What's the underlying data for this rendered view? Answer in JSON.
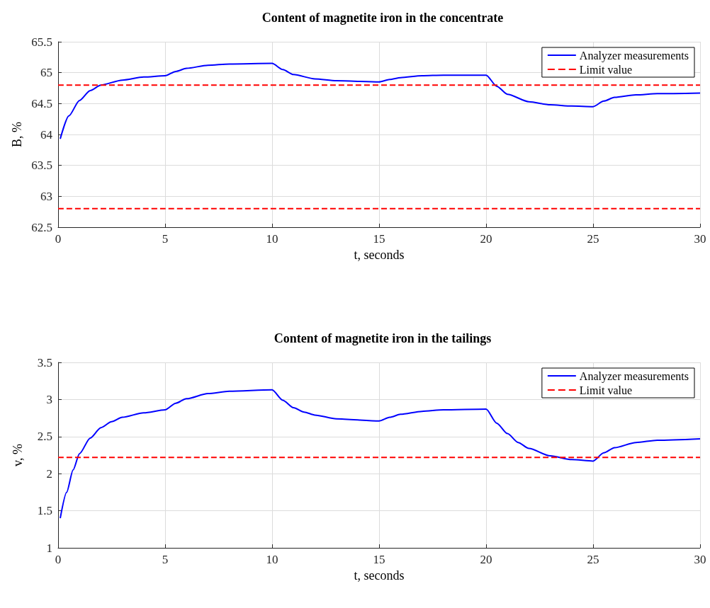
{
  "chart_data": [
    {
      "type": "line",
      "title": "Content of magnetite iron in the concentrate",
      "xlabel": "t, seconds",
      "ylabel": "B, %",
      "xlim": [
        0,
        30
      ],
      "xticks": [
        0,
        5,
        10,
        15,
        20,
        25,
        30
      ],
      "ylim": [
        62.5,
        65.5
      ],
      "yticks": [
        62.5,
        63,
        63.5,
        64,
        64.5,
        65,
        65.5
      ],
      "grid": true,
      "legend": "top right",
      "series": [
        {
          "name": "Analyzer measurements",
          "color": "#0000ff",
          "line_style": "solid",
          "x": [
            0.1,
            0.5,
            1,
            1.5,
            2,
            3,
            4,
            5,
            5.5,
            6,
            7,
            8,
            10,
            10.5,
            11,
            12,
            13,
            15,
            15.5,
            16,
            17,
            18,
            20,
            20.5,
            21,
            22,
            23,
            24,
            25,
            25.5,
            26,
            27,
            28,
            30
          ],
          "values": [
            63.93,
            64.3,
            64.55,
            64.71,
            64.8,
            64.88,
            64.93,
            64.95,
            65.02,
            65.07,
            65.12,
            65.14,
            65.15,
            65.05,
            64.97,
            64.9,
            64.87,
            64.85,
            64.89,
            64.92,
            64.95,
            64.96,
            64.96,
            64.78,
            64.65,
            64.53,
            64.48,
            64.46,
            64.45,
            64.54,
            64.6,
            64.64,
            64.66,
            64.67
          ]
        },
        {
          "name": "Limit value",
          "color": "#ff0000",
          "line_style": "dashed",
          "x": [
            0,
            30
          ],
          "values": [
            64.8,
            64.8
          ]
        },
        {
          "color": "#ff0000",
          "line_style": "dashed",
          "x": [
            0,
            30
          ],
          "values": [
            62.8,
            62.8
          ]
        }
      ]
    },
    {
      "type": "line",
      "title": "Content of magnetite iron in the tailings",
      "xlabel": "t, seconds",
      "ylabel": "v, %",
      "xlim": [
        0,
        30
      ],
      "xticks": [
        0,
        5,
        10,
        15,
        20,
        25,
        30
      ],
      "ylim": [
        1,
        3.5
      ],
      "yticks": [
        1,
        1.5,
        2,
        2.5,
        3,
        3.5
      ],
      "grid": true,
      "legend": "top right",
      "series": [
        {
          "name": "Analyzer measurements",
          "color": "#0000ff",
          "line_style": "solid",
          "x": [
            0.1,
            0.4,
            0.7,
            1,
            1.5,
            2,
            2.5,
            3,
            4,
            5,
            5.5,
            6,
            7,
            8,
            10,
            10.5,
            11,
            11.5,
            12,
            13,
            15,
            15.5,
            16,
            17,
            18,
            20,
            20.5,
            21,
            21.5,
            22,
            23,
            24,
            25,
            25.5,
            26,
            27,
            28,
            30
          ],
          "values": [
            1.4,
            1.75,
            2.05,
            2.27,
            2.48,
            2.62,
            2.7,
            2.76,
            2.82,
            2.86,
            2.95,
            3.01,
            3.08,
            3.11,
            3.13,
            2.99,
            2.89,
            2.83,
            2.79,
            2.74,
            2.71,
            2.76,
            2.8,
            2.84,
            2.86,
            2.87,
            2.68,
            2.54,
            2.42,
            2.34,
            2.24,
            2.19,
            2.17,
            2.28,
            2.35,
            2.42,
            2.45,
            2.47
          ]
        },
        {
          "name": "Limit value",
          "color": "#ff0000",
          "line_style": "dashed",
          "x": [
            0,
            30
          ],
          "values": [
            2.22,
            2.22
          ]
        }
      ]
    }
  ]
}
